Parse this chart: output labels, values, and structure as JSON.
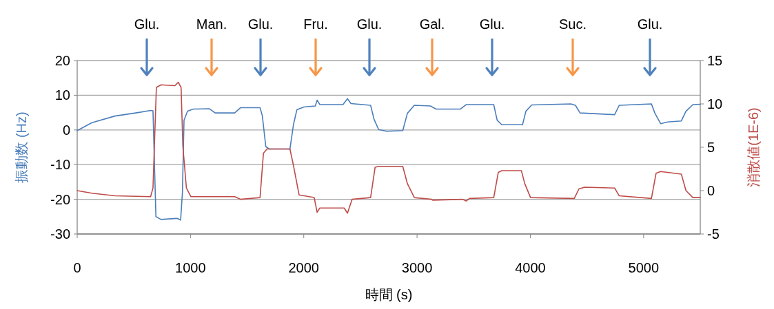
{
  "chart_data": {
    "type": "line",
    "xlabel": "時間 (s)",
    "ylabel": "振動数 (Hz)",
    "y2label": "消散値(1E-6)",
    "xlim": [
      0,
      5500
    ],
    "xticks": [
      0,
      1000,
      2000,
      3000,
      4000,
      5000
    ],
    "ylim": [
      -30,
      20
    ],
    "yticks": [
      -30,
      -20,
      -10,
      0,
      10,
      20
    ],
    "y2lim": [
      -5,
      15
    ],
    "y2ticks": [
      -5,
      0,
      5,
      10,
      15
    ],
    "grid": "y",
    "legend": false,
    "marker": "none",
    "line_style": "solid",
    "annotations": [
      "Glu.",
      "Man.",
      "Glu.",
      "Fru.",
      "Glu.",
      "Gal.",
      "Glu.",
      "Suc.",
      "Glu."
    ],
    "series": [
      {
        "color": "#4a7ebb",
        "x": [
          0,
          130,
          333,
          536,
          648,
          669,
          695,
          740,
          882,
          913,
          929,
          943,
          974,
          1024,
          1167,
          1218,
          1390,
          1441,
          1614,
          1634,
          1665,
          1695,
          1878,
          1909,
          1939,
          2000,
          2102,
          2118,
          2142,
          2346,
          2386,
          2417,
          2590,
          2620,
          2661,
          2732,
          2874,
          2915,
          2976,
          3118,
          3168,
          3382,
          3433,
          3677,
          3707,
          3748,
          3931,
          3961,
          4012,
          4358,
          4398,
          4439,
          4744,
          4785,
          5069,
          5100,
          5150,
          5211,
          5333,
          5374,
          5435,
          5500
        ],
        "values": [
          -0.2,
          2.1,
          4.0,
          5.0,
          5.6,
          5.5,
          -25,
          -25.8,
          -25.5,
          -26,
          -18,
          2.8,
          5.4,
          6.0,
          6.1,
          4.9,
          4.9,
          6.4,
          6.4,
          4.1,
          -4.8,
          -5.5,
          -5.5,
          1.5,
          5.8,
          6.6,
          6.9,
          8.6,
          7.3,
          7.3,
          9.0,
          7.6,
          7.1,
          3.1,
          0.1,
          -0.4,
          -0.2,
          4.8,
          7.1,
          6.9,
          6.0,
          6.0,
          7.3,
          7.3,
          2.8,
          1.5,
          1.5,
          5.4,
          7.2,
          7.5,
          7.1,
          4.9,
          4.4,
          7.1,
          7.5,
          4.8,
          1.8,
          2.3,
          2.6,
          5.4,
          7.3,
          7.4
        ]
      },
      {
        "color": "#be4b48",
        "axis": "y2",
        "x": [
          0,
          130,
          333,
          648,
          669,
          699,
          740,
          862,
          892,
          917,
          933,
          964,
          1004,
          1390,
          1441,
          1614,
          1644,
          1675,
          1878,
          1909,
          1959,
          2092,
          2118,
          2142,
          2356,
          2386,
          2427,
          2590,
          2630,
          2661,
          2874,
          2915,
          2976,
          3128,
          3138,
          3402,
          3433,
          3463,
          3677,
          3717,
          3748,
          3921,
          3951,
          4002,
          4388,
          4429,
          4480,
          4744,
          4785,
          5069,
          5110,
          5150,
          5333,
          5374,
          5435,
          5500
        ],
        "values": [
          0.0,
          -0.3,
          -0.6,
          -0.7,
          0.3,
          11.9,
          12.2,
          12.1,
          12.5,
          11.9,
          5.1,
          0.3,
          -0.7,
          -0.7,
          -1.0,
          -0.8,
          4.3,
          4.8,
          4.8,
          2.9,
          -0.5,
          -0.8,
          -2.5,
          -2.0,
          -2.0,
          -2.6,
          -1.0,
          -0.8,
          2.7,
          2.8,
          2.8,
          0.8,
          -0.8,
          -1.0,
          -1.1,
          -1.0,
          -1.2,
          -0.9,
          -0.8,
          2.1,
          2.3,
          2.3,
          0.8,
          -0.8,
          -0.9,
          0.2,
          0.4,
          0.3,
          -0.6,
          -0.9,
          2.0,
          2.2,
          1.9,
          0.0,
          -0.8,
          -0.8
        ]
      }
    ]
  }
}
